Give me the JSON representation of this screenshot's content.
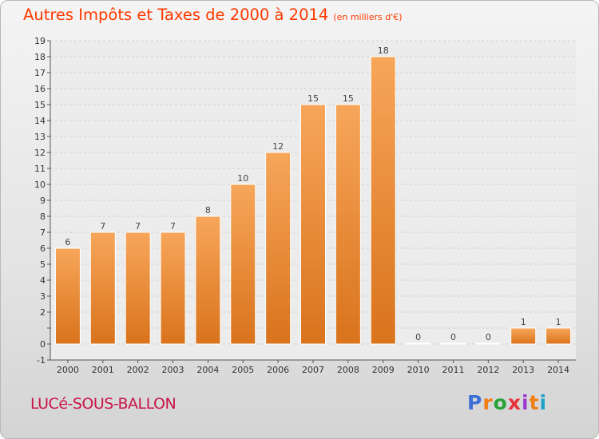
{
  "title": "Autres Impôts et Taxes de 2000 à 2014",
  "unit": "(en milliers d'€)",
  "place": "LUCé-SOUS-BALLON",
  "logo": [
    "P",
    "r",
    "o",
    "x",
    "i",
    "t",
    "i"
  ],
  "logo_colors": [
    "#3c6fd6",
    "#f07e14",
    "#2aa23a",
    "#e8303a",
    "#9d3bd0",
    "#f07e14",
    "#1ea0c8"
  ],
  "bar_color": "#f0943e",
  "chart_data": {
    "type": "bar",
    "categories": [
      "2000",
      "2001",
      "2002",
      "2003",
      "2004",
      "2005",
      "2006",
      "2007",
      "2008",
      "2009",
      "2010",
      "2011",
      "2012",
      "2013",
      "2014"
    ],
    "values": [
      6,
      7,
      7,
      7,
      8,
      10,
      12,
      15,
      15,
      18,
      0,
      0,
      0,
      1,
      1
    ],
    "labels": [
      "6",
      "7",
      "7",
      "7",
      "8",
      "10",
      "12",
      "15",
      "15",
      "18",
      "0",
      "0",
      "0",
      "1",
      "1"
    ],
    "yticks": [
      "-1",
      "0",
      "",
      "2",
      "3",
      "4",
      "5",
      "6",
      "7",
      "8",
      "9",
      "10",
      "11",
      "12",
      "13",
      "14",
      "15",
      "16",
      "17",
      "18",
      "19"
    ],
    "ylim": [
      -1,
      19
    ],
    "grid": true
  }
}
